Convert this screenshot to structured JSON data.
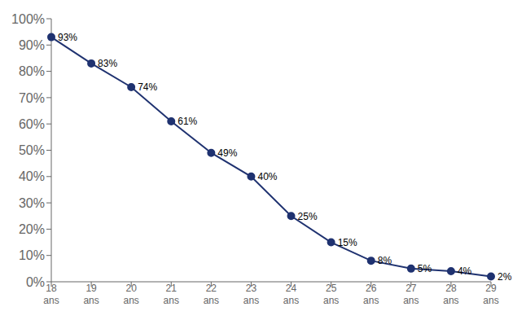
{
  "chart_data": {
    "type": "line",
    "categories": [
      "18\nans",
      "19\nans",
      "20\nans",
      "21\nans",
      "22\nans",
      "23\nans",
      "24\nans",
      "25\nans",
      "26\nans",
      "27\nans",
      "28\nans",
      "29\nans"
    ],
    "values": [
      93,
      83,
      74,
      61,
      49,
      40,
      25,
      15,
      8,
      5,
      4,
      2
    ],
    "value_labels": [
      "93%",
      "83%",
      "74%",
      "61%",
      "49%",
      "40%",
      "25%",
      "15%",
      "8%",
      "5%",
      "4%",
      "2%"
    ],
    "color": "#1F3270",
    "marker": "circle",
    "ylim": [
      0,
      100
    ],
    "yticks": [
      {
        "value": 0,
        "label": "0%"
      },
      {
        "value": 10,
        "label": "10%"
      },
      {
        "value": 20,
        "label": "20%"
      },
      {
        "value": 30,
        "label": "30%"
      },
      {
        "value": 40,
        "label": "40%"
      },
      {
        "value": 50,
        "label": "50%"
      },
      {
        "value": 60,
        "label": "60%"
      },
      {
        "value": 70,
        "label": "70%"
      },
      {
        "value": 80,
        "label": "80%"
      },
      {
        "value": 90,
        "label": "90%"
      },
      {
        "value": 100,
        "label": "100%"
      }
    ],
    "grid": false,
    "data_labels": true
  }
}
